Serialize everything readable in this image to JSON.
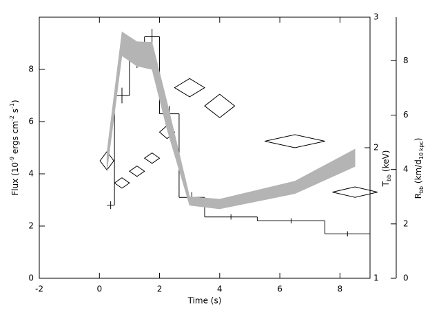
{
  "chart_data": {
    "type": "combo",
    "xlabel": "Time (s)",
    "ylabel": [
      {
        "text": "Flux (10"
      },
      {
        "text": "-9",
        "shift": "super"
      },
      {
        "text": " ergs cm"
      },
      {
        "text": "-2",
        "shift": "super"
      },
      {
        "text": " s"
      },
      {
        "text": "-1",
        "shift": "super"
      },
      {
        "text": ")"
      }
    ],
    "y2label": [
      {
        "text": "T"
      },
      {
        "text": "bb",
        "shift": "sub"
      },
      {
        "text": " (keV)"
      }
    ],
    "y3label": [
      {
        "text": "R"
      },
      {
        "text": "bb",
        "shift": "sub"
      },
      {
        "text": " (km/d"
      },
      {
        "text": "10 kpc",
        "shift": "sub"
      },
      {
        "text": ")"
      }
    ],
    "xlim": [
      -2,
      9
    ],
    "xticks": [
      -2,
      0,
      2,
      4,
      6,
      8
    ],
    "ylim": [
      0,
      10
    ],
    "yticks": [
      0,
      2,
      4,
      6,
      8
    ],
    "y2lim": [
      1,
      3
    ],
    "y2ticks": [
      1,
      2,
      3
    ],
    "y3lim": [
      0,
      9.6
    ],
    "y3ticks": [
      0,
      2,
      4,
      6,
      8
    ],
    "series": [
      {
        "type": "histogram",
        "color": "#000000",
        "bins": [
          0.25,
          0.5,
          1.0,
          1.5,
          2.0,
          2.65,
          3.5,
          5.25,
          7.5,
          9.0
        ],
        "values": [
          2.8,
          7.0,
          8.35,
          9.25,
          6.3,
          3.1,
          2.35,
          2.2,
          1.7
        ],
        "errors": [
          0.15,
          0.3,
          0.3,
          0.3,
          0.3,
          0.2,
          0.1,
          0.1,
          0.1
        ]
      },
      {
        "type": "diamond",
        "axis": "y2",
        "color": "#000000",
        "x": [
          0.25,
          0.75,
          1.25,
          1.75,
          2.25,
          3.0,
          4.0,
          6.5,
          8.5
        ],
        "xerr": [
          0.23,
          0.25,
          0.25,
          0.25,
          0.25,
          0.5,
          0.5,
          1.0,
          0.75
        ],
        "values": [
          1.9,
          1.73,
          1.82,
          1.92,
          2.12,
          2.46,
          2.32,
          2.05,
          1.66
        ],
        "yerr": [
          0.07,
          0.04,
          0.04,
          0.04,
          0.05,
          0.07,
          0.09,
          0.05,
          0.04
        ]
      },
      {
        "type": "band",
        "axis": "y3",
        "color": "#b4b4b4",
        "x": [
          0.25,
          0.75,
          1.25,
          1.75,
          2.25,
          3.0,
          4.0,
          6.5,
          8.5
        ],
        "values": [
          4.28,
          8.62,
          8.25,
          8.18,
          5.97,
          2.84,
          2.73,
          3.34,
          4.43
        ],
        "errors": [
          0.35,
          0.44,
          0.45,
          0.5,
          0.5,
          0.16,
          0.18,
          0.23,
          0.32
        ]
      }
    ]
  }
}
